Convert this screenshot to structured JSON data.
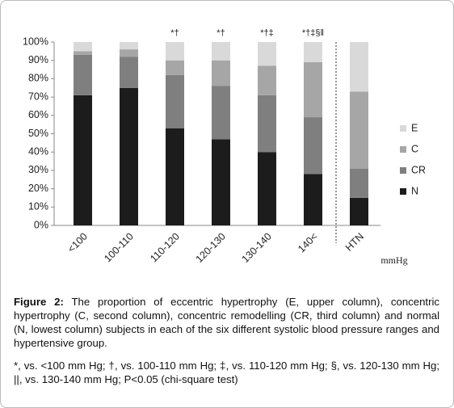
{
  "chart_data": {
    "type": "stacked_bar",
    "categories": [
      "<100",
      "100-110",
      "110-120",
      "120-130",
      "130-140",
      "140<",
      "HTN"
    ],
    "series": [
      {
        "name": "N",
        "color": "#1c1c1c",
        "values": [
          71,
          75,
          53,
          47,
          40,
          28,
          15
        ]
      },
      {
        "name": "CR",
        "color": "#7f7f7f",
        "values": [
          22,
          17,
          29,
          29,
          31,
          31,
          16
        ]
      },
      {
        "name": "C",
        "color": "#a6a6a6",
        "values": [
          2,
          4,
          8,
          14,
          16,
          30,
          42
        ]
      },
      {
        "name": "E",
        "color": "#d9d9d9",
        "values": [
          5,
          4,
          10,
          10,
          13,
          11,
          27
        ]
      }
    ],
    "bar_annotations": [
      null,
      null,
      "*†",
      "*†",
      "*†‡",
      "*†‡§‖",
      null
    ],
    "x_unit_label": "mmHg",
    "ylim": [
      0,
      100
    ],
    "yticks": [
      {
        "value": 0,
        "label": "0%"
      },
      {
        "value": 10,
        "label": "10%"
      },
      {
        "value": 20,
        "label": "20%"
      },
      {
        "value": 30,
        "label": "30%"
      },
      {
        "value": 40,
        "label": "40%"
      },
      {
        "value": 50,
        "label": "50%"
      },
      {
        "value": 60,
        "label": "60%"
      },
      {
        "value": 70,
        "label": "70%"
      },
      {
        "value": 80,
        "label": "80%"
      },
      {
        "value": 90,
        "label": "90%"
      },
      {
        "value": 100,
        "label": "100%"
      }
    ],
    "grid": false
  },
  "caption": {
    "label": "Figure 2:",
    "text": "The proportion of eccentric hypertrophy (E, upper column), concentric hypertrophy (C, second column), concentric remodelling (CR, third column) and normal (N, lowest column) subjects in each of the six different systolic blood pressure ranges and hypertensive group.",
    "footnote": "*, vs. <100 mm Hg; †, vs. 100-110 mm Hg; ‡, vs. 110-120 mm Hg; §, vs. 120-130 mm Hg; ||, vs. 130-140 mm Hg; P<0.05 (chi-square test)"
  }
}
